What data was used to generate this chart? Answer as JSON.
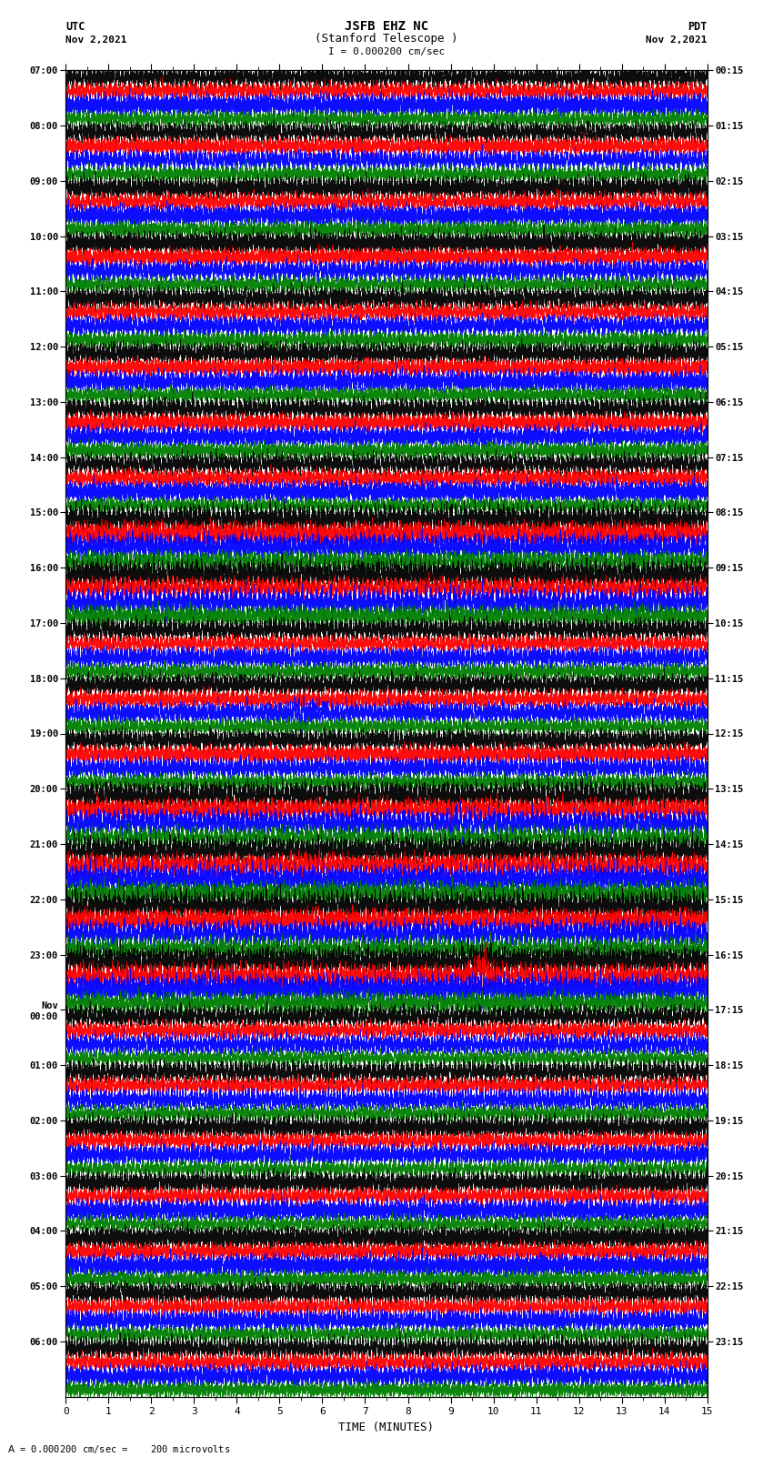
{
  "title_line1": "JSFB EHZ NC",
  "title_line2": "(Stanford Telescope )",
  "scale_text": "I = 0.000200 cm/sec",
  "footer_text": "= 0.000200 cm/sec =    200 microvolts",
  "utc_label": "UTC",
  "pdt_label": "PDT",
  "date_left": "Nov 2,2021",
  "date_right": "Nov 2,2021",
  "xlabel": "TIME (MINUTES)",
  "left_times": [
    "07:00",
    "08:00",
    "09:00",
    "10:00",
    "11:00",
    "12:00",
    "13:00",
    "14:00",
    "15:00",
    "16:00",
    "17:00",
    "18:00",
    "19:00",
    "20:00",
    "21:00",
    "22:00",
    "23:00",
    "Nov\n00:00",
    "01:00",
    "02:00",
    "03:00",
    "04:00",
    "05:00",
    "06:00"
  ],
  "right_times": [
    "00:15",
    "01:15",
    "02:15",
    "03:15",
    "04:15",
    "05:15",
    "06:15",
    "07:15",
    "08:15",
    "09:15",
    "10:15",
    "11:15",
    "12:15",
    "13:15",
    "14:15",
    "15:15",
    "16:15",
    "17:15",
    "18:15",
    "19:15",
    "20:15",
    "21:15",
    "22:15",
    "23:15"
  ],
  "colors": [
    "black",
    "red",
    "blue",
    "green"
  ],
  "n_rows": 24,
  "traces_per_row": 4,
  "fig_width": 8.5,
  "fig_height": 16.13,
  "bg_color": "white",
  "plot_bg_color": "white",
  "time_minutes": 15,
  "seed": 42
}
